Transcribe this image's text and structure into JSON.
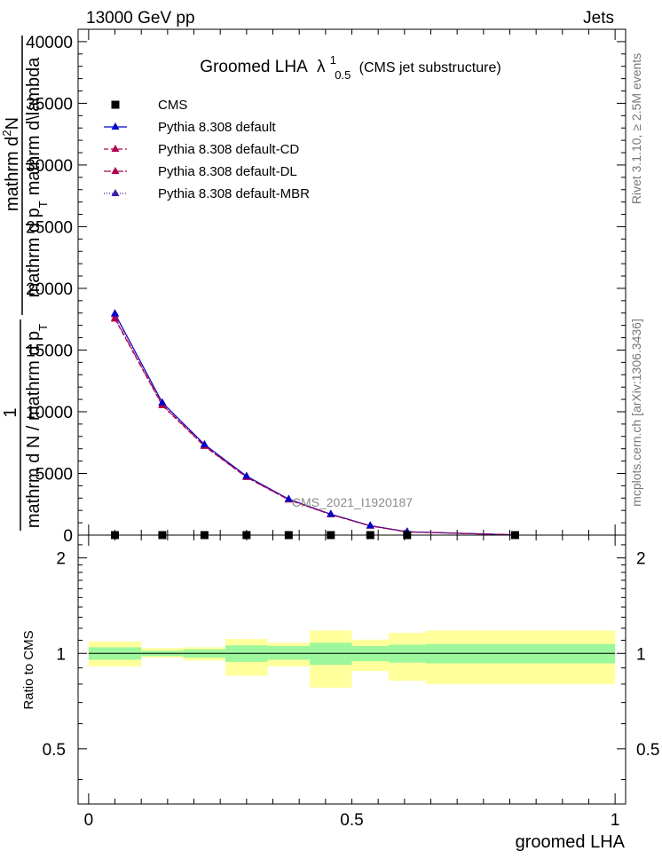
{
  "header": {
    "energy_label": "13000 GeV pp",
    "category_label": "Jets",
    "rivet_label": "Rivet 3.1.10, ≥ 2.5M events",
    "source_label": "mcplots.cern.ch [arXiv:1306.3436]"
  },
  "chart_data": [
    {
      "type": "line",
      "panel": "main",
      "title_main": "Groomed LHA",
      "title_symbol": "λ",
      "title_sup": "1",
      "title_sub": "0.5",
      "title_note": "(CMS jet substructure)",
      "ylabel_lines": [
        "mathrm d²N",
        "mathrm d p_T mathrm d\\lambda",
        "1",
        "mathrm d N / mathrm d p_T"
      ],
      "ylabel_text": {
        "top": "mathrm d",
        "top_sup": "2",
        "top_end": "N",
        "mid1": "mathrm d p",
        "mid1_sub": "T",
        "mid1_end": "mathrm d\\lambda",
        "one": "1",
        "bot": "mathrm d N / mathrm d p",
        "bot_sub": "T"
      },
      "ylim": [
        0,
        41000
      ],
      "xlim": [
        -0.02,
        1.02
      ],
      "yticks": [
        0,
        5000,
        10000,
        15000,
        20000,
        25000,
        30000,
        35000,
        40000
      ],
      "ytick_labels": [
        "0",
        "5000",
        "10000",
        "15000",
        "20000",
        "25000",
        "30000",
        "35000",
        "40000"
      ],
      "watermark": "CMS_2021_I1920187",
      "legend": [
        {
          "name": "CMS",
          "color": "#000000",
          "marker": "square",
          "dash": "none"
        },
        {
          "name": "Pythia 8.308 default",
          "color": "#0000cc",
          "marker": "triangle",
          "dash": "none"
        },
        {
          "name": "Pythia 8.308 default-CD",
          "color": "#b0004f",
          "marker": "triangle",
          "dash": "5,3"
        },
        {
          "name": "Pythia 8.308 default-DL",
          "color": "#b0004f",
          "marker": "triangle",
          "dash": "8,2,2,2"
        },
        {
          "name": "Pythia 8.308 default-MBR",
          "color": "#3a1aa8",
          "marker": "triangle",
          "dash": "1,2"
        }
      ],
      "data": {
        "x": [
          0.05,
          0.14,
          0.22,
          0.3,
          0.38,
          0.46,
          0.535,
          0.605,
          0.81
        ],
        "CMS": [
          0,
          0,
          0,
          0,
          0,
          0,
          0,
          0,
          0
        ],
        "series": [
          {
            "name": "Pythia 8.308 default",
            "values": [
              17960,
              10740,
              7350,
              4780,
              2920,
              1700,
              760,
              270,
              20
            ]
          },
          {
            "name": "Pythia 8.308 default-CD",
            "values": [
              17520,
              10500,
              7200,
              4680,
              2860,
              1660,
              740,
              260,
              20
            ]
          },
          {
            "name": "Pythia 8.308 default-DL",
            "values": [
              17600,
              10560,
              7240,
              4700,
              2880,
              1670,
              745,
              262,
              20
            ]
          },
          {
            "name": "Pythia 8.308 default-MBR",
            "values": [
              17880,
              10700,
              7320,
              4760,
              2910,
              1690,
              755,
              268,
              20
            ]
          }
        ]
      }
    },
    {
      "type": "area",
      "panel": "ratio",
      "ylabel": "Ratio to CMS",
      "xlabel": "groomed LHA",
      "ylim": [
        0.335,
        2.36
      ],
      "xlim": [
        -0.02,
        1.02
      ],
      "yticks": [
        0.5,
        1,
        2
      ],
      "ytick_labels": [
        "0.5",
        "1",
        "2"
      ],
      "xticks": [
        0,
        0.5,
        1
      ],
      "xtick_labels": [
        "0",
        "0.5",
        "1"
      ],
      "bins": [
        {
          "x0": 0.0,
          "x1": 0.1,
          "stat_lo": 0.955,
          "stat_hi": 1.045,
          "tot_lo": 0.91,
          "tot_hi": 1.09
        },
        {
          "x0": 0.1,
          "x1": 0.18,
          "stat_lo": 0.98,
          "stat_hi": 1.02,
          "tot_lo": 0.97,
          "tot_hi": 1.04
        },
        {
          "x0": 0.18,
          "x1": 0.26,
          "stat_lo": 0.97,
          "stat_hi": 1.03,
          "tot_lo": 0.95,
          "tot_hi": 1.045
        },
        {
          "x0": 0.26,
          "x1": 0.34,
          "stat_lo": 0.94,
          "stat_hi": 1.06,
          "tot_lo": 0.85,
          "tot_hi": 1.11
        },
        {
          "x0": 0.34,
          "x1": 0.42,
          "stat_lo": 0.955,
          "stat_hi": 1.055,
          "tot_lo": 0.91,
          "tot_hi": 1.08
        },
        {
          "x0": 0.42,
          "x1": 0.5,
          "stat_lo": 0.92,
          "stat_hi": 1.08,
          "tot_lo": 0.78,
          "tot_hi": 1.18
        },
        {
          "x0": 0.5,
          "x1": 0.57,
          "stat_lo": 0.945,
          "stat_hi": 1.055,
          "tot_lo": 0.88,
          "tot_hi": 1.105
        },
        {
          "x0": 0.57,
          "x1": 0.64,
          "stat_lo": 0.935,
          "stat_hi": 1.065,
          "tot_lo": 0.82,
          "tot_hi": 1.16
        },
        {
          "x0": 0.64,
          "x1": 1.0,
          "stat_lo": 0.93,
          "stat_hi": 1.07,
          "tot_lo": 0.8,
          "tot_hi": 1.18
        }
      ],
      "colors": {
        "stat": "#9cf79c",
        "total": "#ffff9c",
        "reference": "#000000"
      }
    }
  ]
}
